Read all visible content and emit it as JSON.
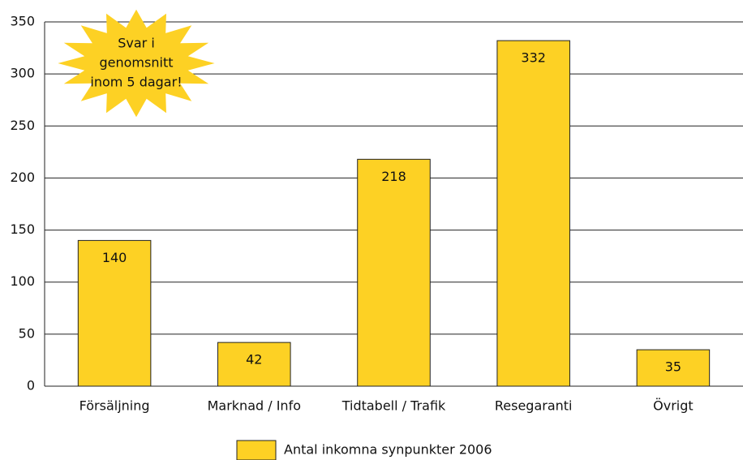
{
  "chart_data": {
    "type": "bar",
    "categories": [
      "Försäljning",
      "Marknad / Info",
      "Tidtabell / Trafik",
      "Resegaranti",
      "Övrigt"
    ],
    "series": [
      {
        "name": "Antal inkomna synpunkter 2006",
        "color": "#fdd124",
        "values": [
          140,
          42,
          218,
          332,
          35
        ]
      }
    ],
    "ylim": [
      0,
      350
    ],
    "yticks": [
      0,
      50,
      100,
      150,
      200,
      250,
      300,
      350
    ],
    "grid": true,
    "annotation": [
      "Svar i",
      "genomsnitt",
      "inom 5 dagar!"
    ],
    "legend": "bottom"
  }
}
